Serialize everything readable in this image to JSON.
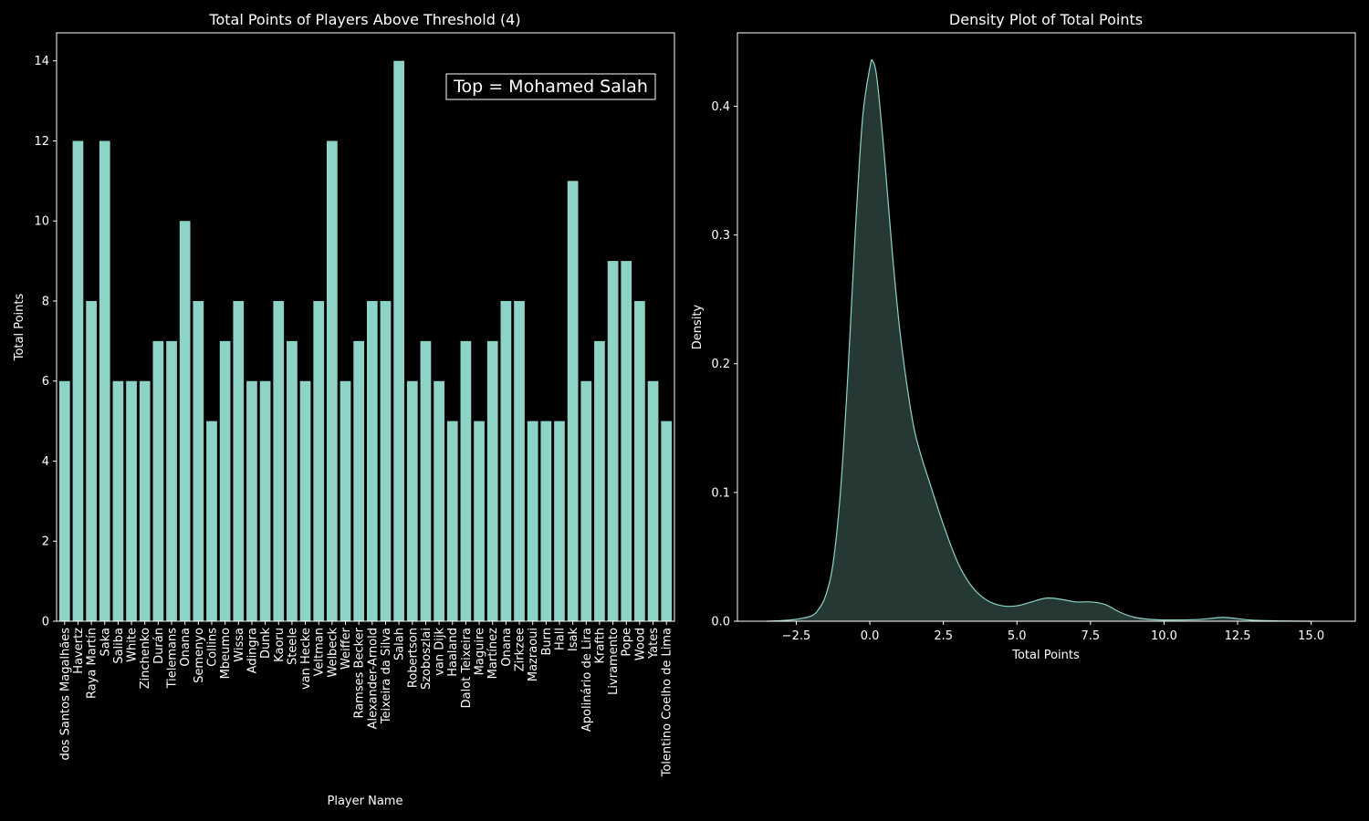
{
  "colors": {
    "background": "#000000",
    "foreground": "#ffffff",
    "bar": "#8dd3c7",
    "density_line": "#8dd3c7",
    "density_fill": "#263833"
  },
  "chart_data": [
    {
      "type": "bar",
      "title": "Total Points of Players Above Threshold (4)",
      "xlabel": "Player Name",
      "ylabel": "Total Points",
      "ylim": [
        0,
        14.7
      ],
      "yticks": [
        0,
        2,
        4,
        6,
        8,
        10,
        12,
        14
      ],
      "annotation": "Top = Mohamed Salah",
      "annotation_position": "top-right",
      "grid": false,
      "categories": [
        "dos Santos Magalhães",
        "Havertz",
        "Raya Martín",
        "Saka",
        "Saliba",
        "White",
        "Zinchenko",
        "Durán",
        "Tielemans",
        "Onana",
        "Semenyo",
        "Collins",
        "Mbeumo",
        "Wissa",
        "Adingra",
        "Dunk",
        "Kaoru",
        "Steele",
        "van Hecke",
        "Veltman",
        "Welbeck",
        "Weiffer",
        "Ramses Becker",
        "Alexander-Arnold",
        "Teixeira da Silva",
        "Salah",
        "Robertson",
        "Szoboszlai",
        "van Dijk",
        "Haaland",
        "Dalot Teixeira",
        "Maguire",
        "Martínez",
        "Onana",
        "Zirkzee",
        "Mazraoui",
        "Burn",
        "Hall",
        "Isak",
        "Apolinário de Lira",
        "Krafth",
        "Livramento",
        "Pope",
        "Wood",
        "Yates",
        "Tolentino Coelho de Lima"
      ],
      "values": [
        6,
        12,
        8,
        12,
        6,
        6,
        6,
        7,
        7,
        10,
        8,
        5,
        7,
        8,
        6,
        6,
        8,
        7,
        6,
        8,
        12,
        6,
        7,
        8,
        8,
        14,
        6,
        7,
        6,
        5,
        7,
        5,
        7,
        8,
        8,
        5,
        5,
        5,
        11,
        6,
        7,
        9,
        9,
        8,
        6,
        5
      ]
    },
    {
      "type": "area",
      "title": "Density Plot of Total Points",
      "xlabel": "Total Points",
      "ylabel": "Density",
      "xlim": [
        -4.5,
        16.5
      ],
      "ylim": [
        0,
        0.457
      ],
      "xticks": [
        -2.5,
        0.0,
        2.5,
        5.0,
        7.5,
        10.0,
        12.5,
        15.0
      ],
      "xtick_labels": [
        "−2.5",
        "0.0",
        "2.5",
        "5.0",
        "7.5",
        "10.0",
        "12.5",
        "15.0"
      ],
      "yticks": [
        0.0,
        0.1,
        0.2,
        0.3,
        0.4
      ],
      "ytick_labels": [
        "0.0",
        "0.1",
        "0.2",
        "0.3",
        "0.4"
      ],
      "grid": false,
      "x": [
        -3.5,
        -3.0,
        -2.5,
        -2.0,
        -1.75,
        -1.5,
        -1.25,
        -1.0,
        -0.75,
        -0.5,
        -0.25,
        0.0,
        0.1,
        0.25,
        0.5,
        0.75,
        1.0,
        1.25,
        1.5,
        1.75,
        2.0,
        2.5,
        3.0,
        3.5,
        4.0,
        4.5,
        5.0,
        5.5,
        6.0,
        6.5,
        7.0,
        7.5,
        8.0,
        8.5,
        9.0,
        9.5,
        10.0,
        11.0,
        11.5,
        12.0,
        12.5,
        13.0,
        14.0,
        15.0
      ],
      "y": [
        0.0,
        0.0005,
        0.0015,
        0.004,
        0.009,
        0.02,
        0.045,
        0.1,
        0.19,
        0.3,
        0.39,
        0.43,
        0.435,
        0.42,
        0.36,
        0.29,
        0.23,
        0.185,
        0.15,
        0.128,
        0.11,
        0.075,
        0.045,
        0.026,
        0.016,
        0.012,
        0.012,
        0.015,
        0.018,
        0.017,
        0.015,
        0.015,
        0.013,
        0.007,
        0.003,
        0.0015,
        0.001,
        0.0012,
        0.002,
        0.003,
        0.002,
        0.0008,
        0.0002,
        0.0
      ]
    }
  ]
}
